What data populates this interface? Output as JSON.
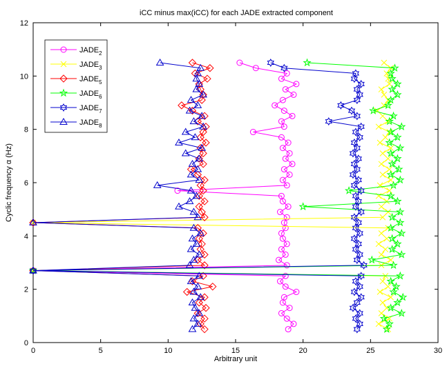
{
  "chart_data": {
    "type": "line",
    "title": "iCC minus max(iCC) for each JADE extracted component",
    "xlabel": "Arbitrary unit",
    "ylabel": "Cyclic frequency α (Hz)",
    "xlim": [
      0,
      30
    ],
    "ylim": [
      0,
      12
    ],
    "x_ticks": [
      0,
      5,
      10,
      15,
      20,
      25,
      30
    ],
    "y_ticks": [
      0,
      2,
      4,
      6,
      8,
      10,
      12
    ],
    "grid": false,
    "legend_position": "top-left",
    "y": [
      0.5,
      0.7,
      0.9,
      1.1,
      1.3,
      1.5,
      1.7,
      1.9,
      2.1,
      2.3,
      2.5,
      2.7,
      2.9,
      3.1,
      3.3,
      3.5,
      3.7,
      3.9,
      4.1,
      4.3,
      4.5,
      4.7,
      4.9,
      5.1,
      5.3,
      5.5,
      5.7,
      5.9,
      6.1,
      6.3,
      6.5,
      6.7,
      6.9,
      7.1,
      7.3,
      7.5,
      7.7,
      7.9,
      8.1,
      8.3,
      8.5,
      8.7,
      8.9,
      9.1,
      9.3,
      9.5,
      9.7,
      9.9,
      10.1,
      10.3,
      10.5
    ],
    "series": [
      {
        "name": "JADE",
        "sub": "2",
        "color": "#ff00ff",
        "marker": "circle",
        "x": [
          18.9,
          19.3,
          18.8,
          18.4,
          19.0,
          18.5,
          18.6,
          19.5,
          18.7,
          18.3,
          18.7,
          0.0,
          18.8,
          18.2,
          18.7,
          18.4,
          18.8,
          18.5,
          18.4,
          18.7,
          18.6,
          18.8,
          18.3,
          18.9,
          18.5,
          18.4,
          10.7,
          18.8,
          18.5,
          19.0,
          18.6,
          19.2,
          18.7,
          19.0,
          18.5,
          18.9,
          18.4,
          16.3,
          18.6,
          18.4,
          19.2,
          18.6,
          17.9,
          18.5,
          19.3,
          18.7,
          19.5,
          18.4,
          18.8,
          16.5,
          15.3
        ]
      },
      {
        "name": "JADE",
        "sub": "3",
        "color": "#ffff00",
        "marker": "x",
        "x": [
          26.3,
          25.6,
          26.4,
          25.8,
          26.2,
          25.9,
          26.5,
          25.7,
          26.3,
          25.9,
          26.1,
          0.0,
          25.8,
          26.5,
          25.8,
          26.1,
          25.6,
          26.2,
          25.8,
          26.3,
          0.0,
          25.9,
          26.3,
          25.8,
          26.2,
          25.6,
          26.4,
          25.7,
          26.5,
          25.9,
          26.4,
          25.8,
          26.3,
          25.9,
          26.5,
          25.7,
          26.1,
          26.4,
          25.6,
          26.3,
          25.9,
          25.5,
          26.0,
          26.3,
          26.0,
          25.8,
          26.4,
          26.3,
          26.2,
          26.5,
          26.0
        ]
      },
      {
        "name": "JADE",
        "sub": "5",
        "color": "#ff0000",
        "marker": "diamond",
        "x": [
          12.7,
          12.4,
          12.7,
          12.2,
          12.8,
          12.3,
          12.7,
          11.4,
          13.3,
          11.8,
          12.6,
          0.0,
          12.7,
          12.2,
          12.7,
          12.4,
          12.5,
          12.3,
          12.6,
          12.2,
          0.0,
          12.7,
          12.5,
          12.3,
          12.7,
          12.3,
          12.6,
          12.4,
          12.7,
          12.2,
          11.7,
          12.6,
          12.3,
          12.6,
          12.4,
          12.8,
          12.4,
          12.6,
          12.8,
          12.2,
          12.7,
          11.8,
          11.0,
          12.5,
          12.6,
          12.4,
          12.3,
          12.9,
          12.0,
          13.1,
          11.8
        ]
      },
      {
        "name": "JADE",
        "sub": "6",
        "color": "#00ff00",
        "marker": "star",
        "x": [
          26.2,
          26.4,
          26.0,
          27.3,
          26.5,
          27.0,
          27.4,
          26.7,
          26.9,
          26.5,
          27.2,
          0.0,
          26.7,
          25.1,
          27.3,
          26.6,
          27.0,
          26.6,
          27.3,
          26.5,
          27.2,
          26.6,
          27.2,
          20.0,
          27.0,
          26.5,
          23.4,
          26.7,
          27.2,
          26.5,
          27.1,
          26.6,
          27.0,
          26.5,
          27.2,
          26.4,
          27.0,
          26.5,
          27.3,
          26.4,
          26.7,
          25.2,
          26.3,
          26.5,
          27.0,
          26.6,
          27.0,
          26.6,
          26.5,
          26.8,
          20.3
        ]
      },
      {
        "name": "JADE",
        "sub": "7",
        "color": "#0000cc",
        "marker": "hexagram",
        "x": [
          24.0,
          24.2,
          23.9,
          24.2,
          23.7,
          24.0,
          24.3,
          23.8,
          24.2,
          23.9,
          24.3,
          0.0,
          24.5,
          24.0,
          24.2,
          23.9,
          24.1,
          23.8,
          24.2,
          23.9,
          24.1,
          23.8,
          24.3,
          23.9,
          24.1,
          23.9,
          24.3,
          23.8,
          24.1,
          23.7,
          24.0,
          23.8,
          24.1,
          23.7,
          24.0,
          23.8,
          24.2,
          23.9,
          24.3,
          21.9,
          24.0,
          23.6,
          22.8,
          24.0,
          24.2,
          24.0,
          24.3,
          23.8,
          23.9,
          18.6,
          17.6
        ]
      },
      {
        "name": "JADE",
        "sub": "8",
        "color": "#0000cc",
        "marker": "triangle",
        "x": [
          11.8,
          12.2,
          11.9,
          12.3,
          12.0,
          11.8,
          12.4,
          11.9,
          12.2,
          11.7,
          12.3,
          0.0,
          11.6,
          11.9,
          12.3,
          11.7,
          12.1,
          11.8,
          12.4,
          11.9,
          0.0,
          12.2,
          11.9,
          10.8,
          11.6,
          12.1,
          11.7,
          9.2,
          12.3,
          11.7,
          12.2,
          11.8,
          12.3,
          11.3,
          12.5,
          10.8,
          12.0,
          11.3,
          12.6,
          11.9,
          12.5,
          11.6,
          12.2,
          11.7,
          12.6,
          12.1,
          12.3,
          12.1,
          12.2,
          12.4,
          9.4
        ]
      }
    ]
  }
}
